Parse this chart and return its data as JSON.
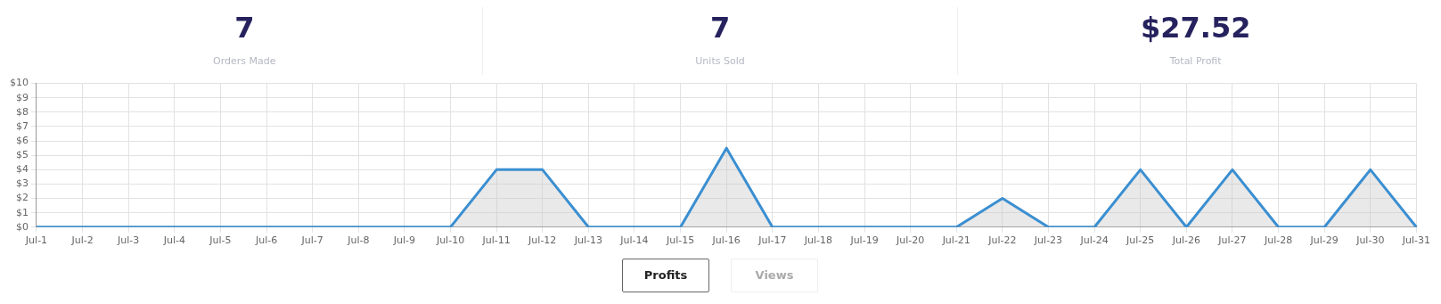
{
  "chart_data": {
    "type": "area",
    "annotations": [
      "7",
      "Orders Made",
      "7",
      "Units Sold",
      "$27.52",
      "Total Profit",
      "Profits",
      "Views"
    ],
    "categories": [
      "Jul-1",
      "Jul-2",
      "Jul-3",
      "Jul-4",
      "Jul-5",
      "Jul-6",
      "Jul-7",
      "Jul-8",
      "Jul-9",
      "Jul-10",
      "Jul-11",
      "Jul-12",
      "Jul-13",
      "Jul-14",
      "Jul-15",
      "Jul-16",
      "Jul-17",
      "Jul-18",
      "Jul-19",
      "Jul-20",
      "Jul-21",
      "Jul-22",
      "Jul-23",
      "Jul-24",
      "Jul-25",
      "Jul-26",
      "Jul-27",
      "Jul-28",
      "Jul-29",
      "Jul-30",
      "Jul-31"
    ],
    "series": [
      {
        "color": "#3b8fd1",
        "values": [
          0,
          0,
          0,
          0,
          0,
          0,
          0,
          0,
          0,
          0,
          4,
          4,
          0,
          0,
          0,
          5.5,
          0,
          0,
          0,
          0,
          0,
          2,
          0,
          0,
          4,
          0,
          4,
          0,
          0,
          4,
          0
        ]
      }
    ],
    "ylim": [
      0,
      10
    ],
    "yticks": [
      {
        "value": 0,
        "label": "$0"
      },
      {
        "value": 1,
        "label": "$1"
      },
      {
        "value": 2,
        "label": "$2"
      },
      {
        "value": 3,
        "label": "$3"
      },
      {
        "value": 4,
        "label": "$4"
      },
      {
        "value": 5,
        "label": "$5"
      },
      {
        "value": 6,
        "label": "$6"
      },
      {
        "value": 7,
        "label": "$7"
      },
      {
        "value": 8,
        "label": "$8"
      },
      {
        "value": 9,
        "label": "$9"
      },
      {
        "value": 10,
        "label": "$10"
      }
    ],
    "grid": true,
    "legend": false,
    "marker": "none",
    "line_style": "solid"
  }
}
